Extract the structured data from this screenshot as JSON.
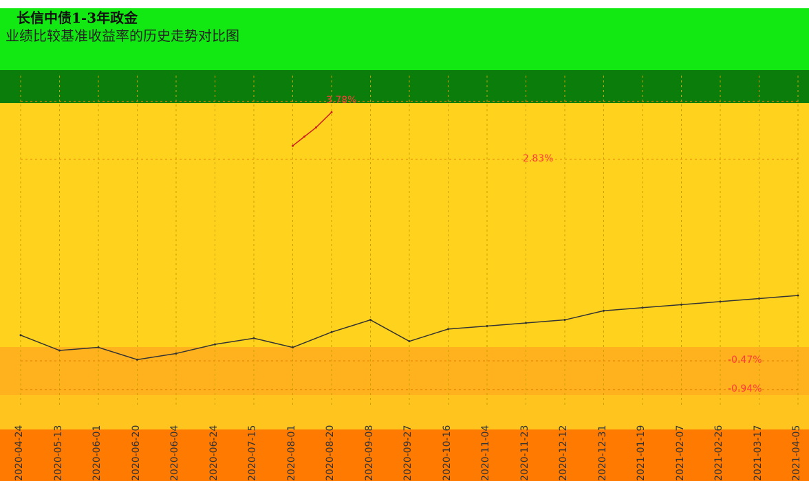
{
  "header": {
    "title": "长信中债1-3年政金",
    "subtitle": "业绩比较基准收益率的历史走势对比图"
  },
  "chart_data": {
    "type": "line",
    "title": "长信中债1-3年政金",
    "subtitle": "业绩比较基准收益率的历史走势对比图",
    "y_tick_labels": [
      "3.78%",
      "2.83%",
      "-0.47%",
      "-0.94%"
    ],
    "ylim": [
      -1.2,
      4.2
    ],
    "grid": true,
    "x_tick_labels": [
      "2020-04-24",
      "2020-05-13",
      "2020-06-01",
      "2020-06-20",
      "2020-06-04",
      "2020-06-24",
      "2020-07-15",
      "2020-08-01",
      "2020-08-20",
      "2020-09-08",
      "2020-09-27",
      "2020-10-16",
      "2020-11-04",
      "2020-11-23",
      "2020-12-12",
      "2020-12-31",
      "2021-01-19",
      "2021-02-07",
      "2021-02-26",
      "2021-03-17",
      "2021-04-05"
    ],
    "series": [
      {
        "name": "",
        "color": "#333333",
        "x": [
          0,
          1,
          2,
          3,
          4,
          5,
          6,
          7,
          8,
          9,
          10,
          11,
          12,
          13,
          14,
          15,
          16,
          17,
          18,
          19,
          20
        ],
        "values": [
          -0.05,
          -0.3,
          -0.25,
          -0.45,
          -0.35,
          -0.2,
          -0.1,
          -0.25,
          0.0,
          0.2,
          -0.15,
          0.05,
          0.1,
          0.15,
          0.2,
          0.35,
          0.4,
          0.45,
          0.5,
          0.55,
          0.6
        ]
      },
      {
        "name": "",
        "color": "#cc1f1f",
        "x": [
          7,
          7.3,
          7.6,
          8
        ],
        "values": [
          3.05,
          3.2,
          3.35,
          3.6
        ]
      }
    ]
  }
}
